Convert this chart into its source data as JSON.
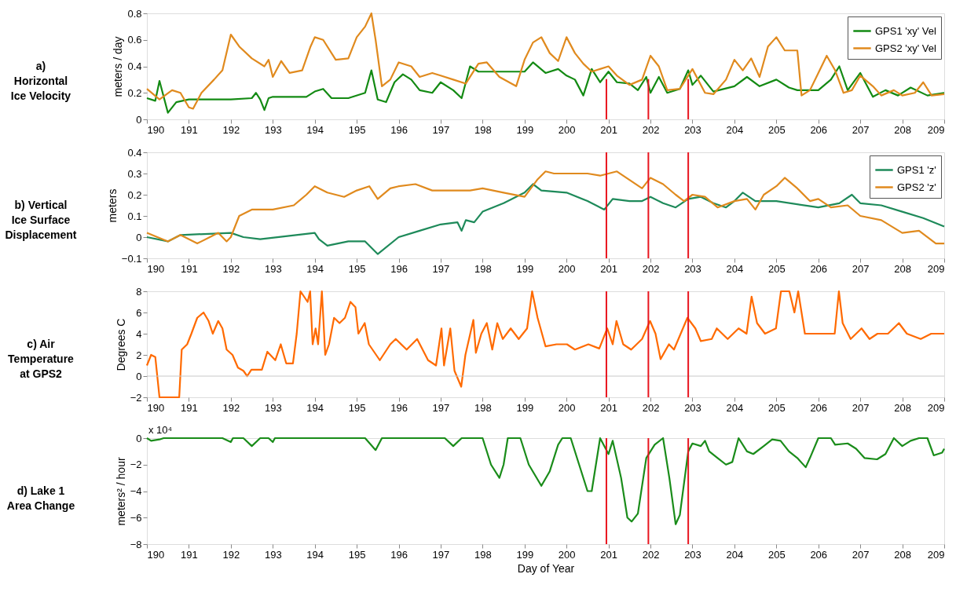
{
  "chart_data": [
    {
      "type": "line",
      "title": "a) Horizontal Ice Velocity",
      "ylabel": "meters / day",
      "xlim": [
        190,
        209
      ],
      "xticks": [
        190,
        191,
        192,
        193,
        194,
        195,
        196,
        197,
        198,
        199,
        200,
        201,
        202,
        203,
        204,
        205,
        206,
        207,
        208,
        209
      ],
      "ylim": [
        0,
        0.8
      ],
      "yticks": [
        0,
        0.2,
        0.4,
        0.6,
        0.8
      ],
      "legend": "top right",
      "series": [
        {
          "name": "GPS1 'xy' Vel",
          "color": "#138a13",
          "x": [
            190,
            190.2,
            190.3,
            190.5,
            190.7,
            191,
            192,
            192.5,
            192.6,
            192.7,
            192.8,
            192.9,
            193,
            193.8,
            194,
            194.2,
            194.4,
            194.8,
            195.2,
            195.35,
            195.5,
            195.7,
            195.9,
            196.1,
            196.3,
            196.5,
            196.8,
            197,
            197.3,
            197.5,
            197.7,
            197.9,
            198.5,
            199,
            199.2,
            199.5,
            199.8,
            200,
            200.2,
            200.4,
            200.6,
            200.8,
            201,
            201.2,
            201.5,
            201.7,
            201.9,
            202,
            202.2,
            202.4,
            202.7,
            202.9,
            203,
            203.2,
            203.5,
            204,
            204.3,
            204.6,
            205,
            205.3,
            205.5,
            206,
            206.3,
            206.5,
            206.7,
            207,
            207.3,
            207.6,
            207.9,
            208.2,
            208.6,
            209
          ],
          "values": [
            0.16,
            0.14,
            0.29,
            0.05,
            0.13,
            0.15,
            0.15,
            0.16,
            0.2,
            0.15,
            0.07,
            0.16,
            0.17,
            0.17,
            0.21,
            0.23,
            0.16,
            0.16,
            0.2,
            0.37,
            0.15,
            0.13,
            0.28,
            0.34,
            0.3,
            0.22,
            0.2,
            0.28,
            0.22,
            0.16,
            0.4,
            0.36,
            0.36,
            0.36,
            0.43,
            0.35,
            0.38,
            0.33,
            0.3,
            0.18,
            0.38,
            0.28,
            0.36,
            0.28,
            0.27,
            0.22,
            0.32,
            0.2,
            0.32,
            0.2,
            0.23,
            0.37,
            0.26,
            0.33,
            0.21,
            0.25,
            0.32,
            0.25,
            0.3,
            0.24,
            0.22,
            0.22,
            0.3,
            0.4,
            0.22,
            0.35,
            0.17,
            0.22,
            0.18,
            0.24,
            0.18,
            0.2
          ]
        },
        {
          "name": "GPS2 'xy' Vel",
          "color": "#e08a1e",
          "x": [
            190,
            190.3,
            190.6,
            190.8,
            191,
            191.1,
            191.3,
            191.6,
            191.8,
            192,
            192.2,
            192.5,
            192.8,
            192.9,
            193,
            193.2,
            193.4,
            193.7,
            193.9,
            194,
            194.2,
            194.5,
            194.8,
            195,
            195.2,
            195.35,
            195.45,
            195.6,
            195.8,
            196,
            196.3,
            196.5,
            196.8,
            197,
            197.3,
            197.6,
            197.9,
            198.1,
            198.4,
            198.8,
            199,
            199.2,
            199.4,
            199.6,
            199.8,
            200,
            200.2,
            200.4,
            200.6,
            200.8,
            201,
            201.2,
            201.5,
            201.8,
            202,
            202.2,
            202.4,
            202.7,
            203,
            203.3,
            203.5,
            203.8,
            204,
            204.2,
            204.4,
            204.6,
            204.8,
            205,
            205.2,
            205.5,
            205.6,
            205.8,
            206,
            206.2,
            206.4,
            206.6,
            206.8,
            207,
            207.3,
            207.5,
            207.8,
            208,
            208.3,
            208.5,
            208.7,
            209
          ],
          "values": [
            0.23,
            0.15,
            0.22,
            0.2,
            0.09,
            0.08,
            0.2,
            0.3,
            0.37,
            0.64,
            0.55,
            0.46,
            0.4,
            0.45,
            0.32,
            0.44,
            0.35,
            0.37,
            0.55,
            0.62,
            0.6,
            0.45,
            0.46,
            0.62,
            0.7,
            0.8,
            0.6,
            0.25,
            0.3,
            0.43,
            0.4,
            0.32,
            0.35,
            0.33,
            0.3,
            0.27,
            0.42,
            0.43,
            0.32,
            0.25,
            0.45,
            0.58,
            0.62,
            0.5,
            0.44,
            0.62,
            0.5,
            0.42,
            0.36,
            0.38,
            0.4,
            0.33,
            0.26,
            0.3,
            0.48,
            0.4,
            0.22,
            0.23,
            0.38,
            0.2,
            0.19,
            0.3,
            0.45,
            0.37,
            0.46,
            0.32,
            0.55,
            0.62,
            0.52,
            0.52,
            0.18,
            0.22,
            0.35,
            0.48,
            0.37,
            0.2,
            0.22,
            0.33,
            0.25,
            0.18,
            0.22,
            0.18,
            0.2,
            0.28,
            0.18,
            0.19
          ]
        }
      ],
      "ref_lines": [
        {
          "axis": "x",
          "value": 200.95,
          "color": "#e8141e"
        },
        {
          "axis": "x",
          "value": 201.95,
          "color": "#e8141e"
        },
        {
          "axis": "x",
          "value": 202.9,
          "color": "#e8141e"
        }
      ]
    },
    {
      "type": "line",
      "title": "b) Vertical Ice Surface Displacement",
      "ylabel": "meters",
      "xlim": [
        190,
        209
      ],
      "xticks": [
        190,
        191,
        192,
        193,
        194,
        195,
        196,
        197,
        198,
        199,
        200,
        201,
        202,
        203,
        204,
        205,
        206,
        207,
        208,
        209
      ],
      "ylim": [
        -0.1,
        0.4
      ],
      "yticks": [
        -0.1,
        0,
        0.1,
        0.2,
        0.3,
        0.4
      ],
      "legend": "top right",
      "series": [
        {
          "name": "GPS1 'z'",
          "color": "#1e8a5a",
          "x": [
            190,
            190.5,
            190.8,
            192,
            192.3,
            192.7,
            194,
            194.1,
            194.3,
            194.8,
            195.2,
            195.5,
            196,
            196.5,
            197,
            197.4,
            197.5,
            197.6,
            197.8,
            198,
            198.5,
            199,
            199.2,
            199.4,
            200,
            200.5,
            200.9,
            201.1,
            201.5,
            201.8,
            202,
            202.3,
            202.6,
            202.9,
            203.2,
            203.5,
            203.8,
            204,
            204.2,
            204.5,
            205,
            206,
            206.5,
            206.8,
            207,
            207.5,
            208,
            208.5,
            209
          ],
          "values": [
            0,
            -0.02,
            0.01,
            0.02,
            0,
            -0.01,
            0.02,
            -0.01,
            -0.04,
            -0.02,
            -0.02,
            -0.08,
            0,
            0.03,
            0.06,
            0.07,
            0.03,
            0.08,
            0.07,
            0.12,
            0.16,
            0.21,
            0.25,
            0.22,
            0.21,
            0.17,
            0.13,
            0.18,
            0.17,
            0.17,
            0.19,
            0.16,
            0.14,
            0.18,
            0.19,
            0.16,
            0.14,
            0.17,
            0.21,
            0.17,
            0.17,
            0.14,
            0.16,
            0.2,
            0.16,
            0.15,
            0.12,
            0.09,
            0.05
          ]
        },
        {
          "name": "GPS2 'z'",
          "color": "#e08a1e",
          "x": [
            190,
            190.5,
            190.8,
            191.2,
            191.5,
            191.7,
            191.9,
            192,
            192.2,
            192.5,
            193,
            193.5,
            193.8,
            194,
            194.3,
            194.7,
            195,
            195.3,
            195.5,
            195.8,
            196,
            196.4,
            196.8,
            197.2,
            197.7,
            198,
            198.5,
            199,
            199.3,
            199.5,
            199.7,
            200,
            200.5,
            200.8,
            201.2,
            201.5,
            201.8,
            202,
            202.3,
            202.6,
            202.8,
            203,
            203.3,
            203.6,
            204,
            204.3,
            204.5,
            204.7,
            205,
            205.2,
            205.5,
            205.8,
            206,
            206.3,
            206.7,
            207,
            207.5,
            208,
            208.4,
            208.8,
            209
          ],
          "values": [
            0.02,
            -0.02,
            0.01,
            -0.03,
            0,
            0.02,
            -0.02,
            0,
            0.1,
            0.13,
            0.13,
            0.15,
            0.2,
            0.24,
            0.21,
            0.19,
            0.22,
            0.24,
            0.18,
            0.23,
            0.24,
            0.25,
            0.22,
            0.22,
            0.22,
            0.23,
            0.21,
            0.19,
            0.27,
            0.31,
            0.3,
            0.3,
            0.3,
            0.29,
            0.31,
            0.27,
            0.23,
            0.28,
            0.25,
            0.2,
            0.17,
            0.2,
            0.19,
            0.14,
            0.17,
            0.18,
            0.13,
            0.2,
            0.24,
            0.28,
            0.23,
            0.17,
            0.18,
            0.14,
            0.15,
            0.1,
            0.08,
            0.02,
            0.03,
            -0.03,
            -0.03
          ]
        }
      ],
      "ref_lines": [
        {
          "axis": "x",
          "value": 200.95,
          "color": "#e8141e"
        },
        {
          "axis": "x",
          "value": 201.95,
          "color": "#e8141e"
        },
        {
          "axis": "x",
          "value": 202.9,
          "color": "#e8141e"
        }
      ]
    },
    {
      "type": "line",
      "title": "c) Air Temperature at GPS2",
      "ylabel": "Degrees C",
      "xlim": [
        190,
        209
      ],
      "xticks": [
        190,
        191,
        192,
        193,
        194,
        195,
        196,
        197,
        198,
        199,
        200,
        201,
        202,
        203,
        204,
        205,
        206,
        207,
        208,
        209
      ],
      "ylim": [
        -2,
        8
      ],
      "yticks": [
        -2,
        0,
        2,
        4,
        6,
        8
      ],
      "series": [
        {
          "color": "#ff6a00",
          "x": [
            190,
            190.1,
            190.2,
            190.3,
            190.77,
            190.83,
            190.96,
            191.06,
            191.2,
            191.35,
            191.47,
            191.57,
            191.7,
            191.8,
            191.9,
            192.04,
            192.17,
            192.3,
            192.39,
            192.49,
            192.74,
            192.87,
            193.06,
            193.19,
            193.32,
            193.48,
            193.57,
            193.66,
            193.83,
            193.89,
            193.95,
            194.02,
            194.08,
            194.17,
            194.25,
            194.34,
            194.46,
            194.59,
            194.72,
            194.85,
            194.97,
            195.04,
            195.19,
            195.29,
            195.55,
            195.8,
            195.93,
            196.19,
            196.44,
            196.57,
            196.7,
            196.89,
            197.02,
            197.08,
            197.23,
            197.33,
            197.49,
            197.59,
            197.78,
            197.84,
            197.97,
            198.1,
            198.23,
            198.35,
            198.48,
            198.67,
            198.86,
            199.06,
            199.18,
            199.31,
            199.5,
            199.76,
            200.01,
            200.2,
            200.52,
            200.78,
            200.97,
            201.1,
            201.19,
            201.35,
            201.54,
            201.8,
            201.99,
            202.12,
            202.24,
            202.44,
            202.56,
            202.88,
            203.07,
            203.2,
            203.46,
            203.58,
            203.84,
            204.1,
            204.29,
            204.41,
            204.54,
            204.73,
            204.99,
            205.11,
            205.31,
            205.43,
            205.52,
            205.68,
            205.88,
            206.14,
            206.39,
            206.49,
            206.58,
            206.77,
            207.03,
            207.22,
            207.41,
            207.66,
            207.92,
            208.11,
            208.44,
            208.69,
            209
          ],
          "values": [
            1,
            2,
            1.8,
            -2,
            -2,
            2.5,
            3,
            4,
            5.5,
            6,
            5.2,
            4,
            5.2,
            4.5,
            2.5,
            2,
            0.8,
            0.5,
            0,
            0.6,
            0.6,
            2.3,
            1.5,
            3,
            1.2,
            1.2,
            4,
            8,
            7,
            8,
            3,
            4.5,
            3,
            8,
            2,
            3,
            5.5,
            5,
            5.5,
            7,
            6.5,
            4,
            5,
            3,
            1.5,
            3,
            3.5,
            2.5,
            3.5,
            2.5,
            1.5,
            1,
            4.5,
            1,
            4.5,
            0.5,
            -1,
            2,
            5.3,
            2.2,
            4,
            5,
            2.5,
            5,
            3.5,
            4.5,
            3.5,
            4.5,
            8,
            5.5,
            2.8,
            3,
            3,
            2.5,
            3,
            2.6,
            4.5,
            3,
            5.2,
            3,
            2.5,
            3.5,
            5.2,
            4,
            1.6,
            3,
            2.5,
            5.5,
            4.5,
            3.3,
            3.5,
            4.5,
            3.5,
            4.5,
            4,
            7.5,
            5,
            4,
            4.5,
            8,
            8,
            6,
            8,
            4,
            4,
            4,
            4,
            8,
            5,
            3.5,
            4.5,
            3.5,
            4,
            4,
            5,
            4,
            3.5,
            4,
            4
          ]
        }
      ],
      "ref_lines": [
        {
          "axis": "y",
          "value": 0,
          "color": "#c8c8c8"
        },
        {
          "axis": "x",
          "value": 200.95,
          "color": "#e8141e"
        },
        {
          "axis": "x",
          "value": 201.95,
          "color": "#e8141e"
        },
        {
          "axis": "x",
          "value": 202.9,
          "color": "#e8141e"
        }
      ]
    },
    {
      "type": "line",
      "title": "d) Lake 1 Area Change",
      "ylabel": "meters² / hour",
      "xlabel": "Day of Year",
      "xlim": [
        190,
        209
      ],
      "xticks": [
        190,
        191,
        192,
        193,
        194,
        195,
        196,
        197,
        198,
        199,
        200,
        201,
        202,
        203,
        204,
        205,
        206,
        207,
        208,
        209
      ],
      "ylim": [
        -8,
        0
      ],
      "yticks": [
        -8,
        -6,
        -4,
        -2,
        0
      ],
      "annotations": [
        "x 10⁴"
      ],
      "series": [
        {
          "color": "#1a8c1a",
          "x": [
            190,
            190.1,
            190.3,
            190.4,
            191.8,
            192,
            192.05,
            192.3,
            192.5,
            192.7,
            192.9,
            193,
            193.05,
            195.2,
            195.45,
            195.6,
            197.1,
            197.3,
            197.5,
            198,
            198.2,
            198.4,
            198.5,
            198.6,
            198.9,
            199.1,
            199.4,
            199.6,
            199.8,
            199.9,
            200.1,
            200.3,
            200.5,
            200.6,
            200.7,
            200.8,
            201,
            201.1,
            201.3,
            201.45,
            201.55,
            201.7,
            201.9,
            202.1,
            202.3,
            202.45,
            202.6,
            202.7,
            202.9,
            203,
            203.2,
            203.3,
            203.4,
            203.6,
            203.8,
            203.95,
            204.1,
            204.3,
            204.45,
            204.7,
            204.9,
            205.1,
            205.3,
            205.5,
            205.7,
            205.8,
            206,
            206.3,
            206.4,
            206.7,
            206.9,
            207.1,
            207.4,
            207.6,
            207.8,
            208,
            208.2,
            208.4,
            208.6,
            208.75,
            208.95,
            209
          ],
          "values": [
            0,
            -0.2,
            -0.1,
            0,
            0,
            -0.3,
            0,
            0,
            -0.6,
            0,
            0,
            -0.3,
            0,
            0,
            -0.9,
            0,
            0,
            -0.6,
            0,
            0,
            -2,
            -3,
            -2,
            0,
            0,
            -2,
            -3.6,
            -2.5,
            -0.5,
            0,
            0,
            -2,
            -4,
            -4,
            -2,
            0,
            -1.2,
            -0.2,
            -3,
            -6,
            -6.3,
            -5.7,
            -1.5,
            -0.5,
            0,
            -3,
            -6.5,
            -5.8,
            -1,
            -0.4,
            -0.6,
            -0.2,
            -1,
            -1.5,
            -2,
            -1.8,
            0,
            -1,
            -1.2,
            -0.6,
            -0.1,
            -0.2,
            -1,
            -1.5,
            -2.2,
            -1.5,
            0,
            0,
            -0.5,
            -0.4,
            -0.8,
            -1.5,
            -1.6,
            -1.2,
            0,
            -0.6,
            -0.2,
            0,
            0,
            -1.3,
            -1.1,
            -0.8
          ]
        }
      ],
      "ref_lines": [
        {
          "axis": "x",
          "value": 200.95,
          "color": "#e8141e"
        },
        {
          "axis": "x",
          "value": 201.95,
          "color": "#e8141e"
        },
        {
          "axis": "x",
          "value": 202.9,
          "color": "#e8141e"
        }
      ]
    }
  ]
}
